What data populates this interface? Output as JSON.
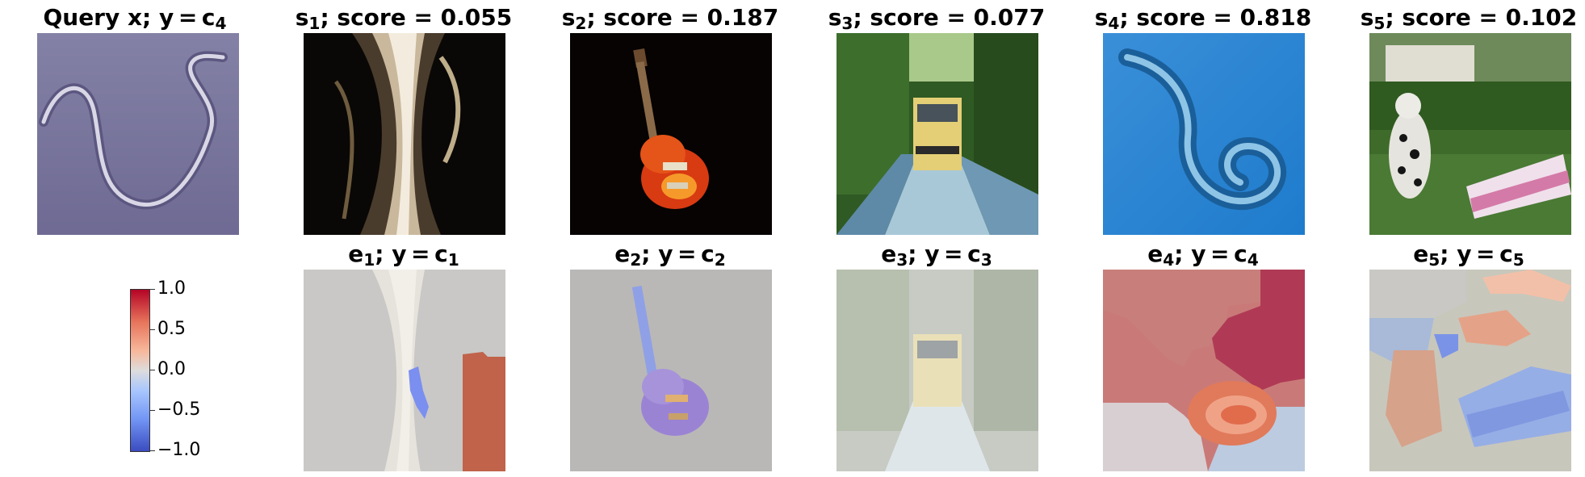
{
  "top_row": [
    {
      "prefix": "Query x; y = ",
      "main": "c",
      "sub": "4",
      "tail": ""
    },
    {
      "prefix": "",
      "main": "s",
      "sub": "1",
      "tail": "; score = 0.055"
    },
    {
      "prefix": "",
      "main": "s",
      "sub": "2",
      "tail": "; score = 0.187"
    },
    {
      "prefix": "",
      "main": "s",
      "sub": "3",
      "tail": "; score = 0.077"
    },
    {
      "prefix": "",
      "main": "s",
      "sub": "4",
      "tail": "; score = 0.818"
    },
    {
      "prefix": "",
      "main": "s",
      "sub": "5",
      "tail": "; score = 0.102"
    }
  ],
  "bottom_row": [
    {
      "main": "e",
      "sub": "1",
      "mid": "; y = c",
      "sub2": "1"
    },
    {
      "main": "e",
      "sub": "2",
      "mid": "; y = c",
      "sub2": "2"
    },
    {
      "main": "e",
      "sub": "3",
      "mid": "; y = c",
      "sub2": "3"
    },
    {
      "main": "e",
      "sub": "4",
      "mid": "; y = c",
      "sub2": "4"
    },
    {
      "main": "e",
      "sub": "5",
      "mid": "; y = c",
      "sub2": "5"
    }
  ],
  "colorbar": {
    "ticks": [
      "1.0",
      "0.5",
      "0.0",
      "−0.5",
      "−1.0"
    ],
    "range": [
      -1.0,
      1.0
    ],
    "colormap": "coolwarm"
  }
}
